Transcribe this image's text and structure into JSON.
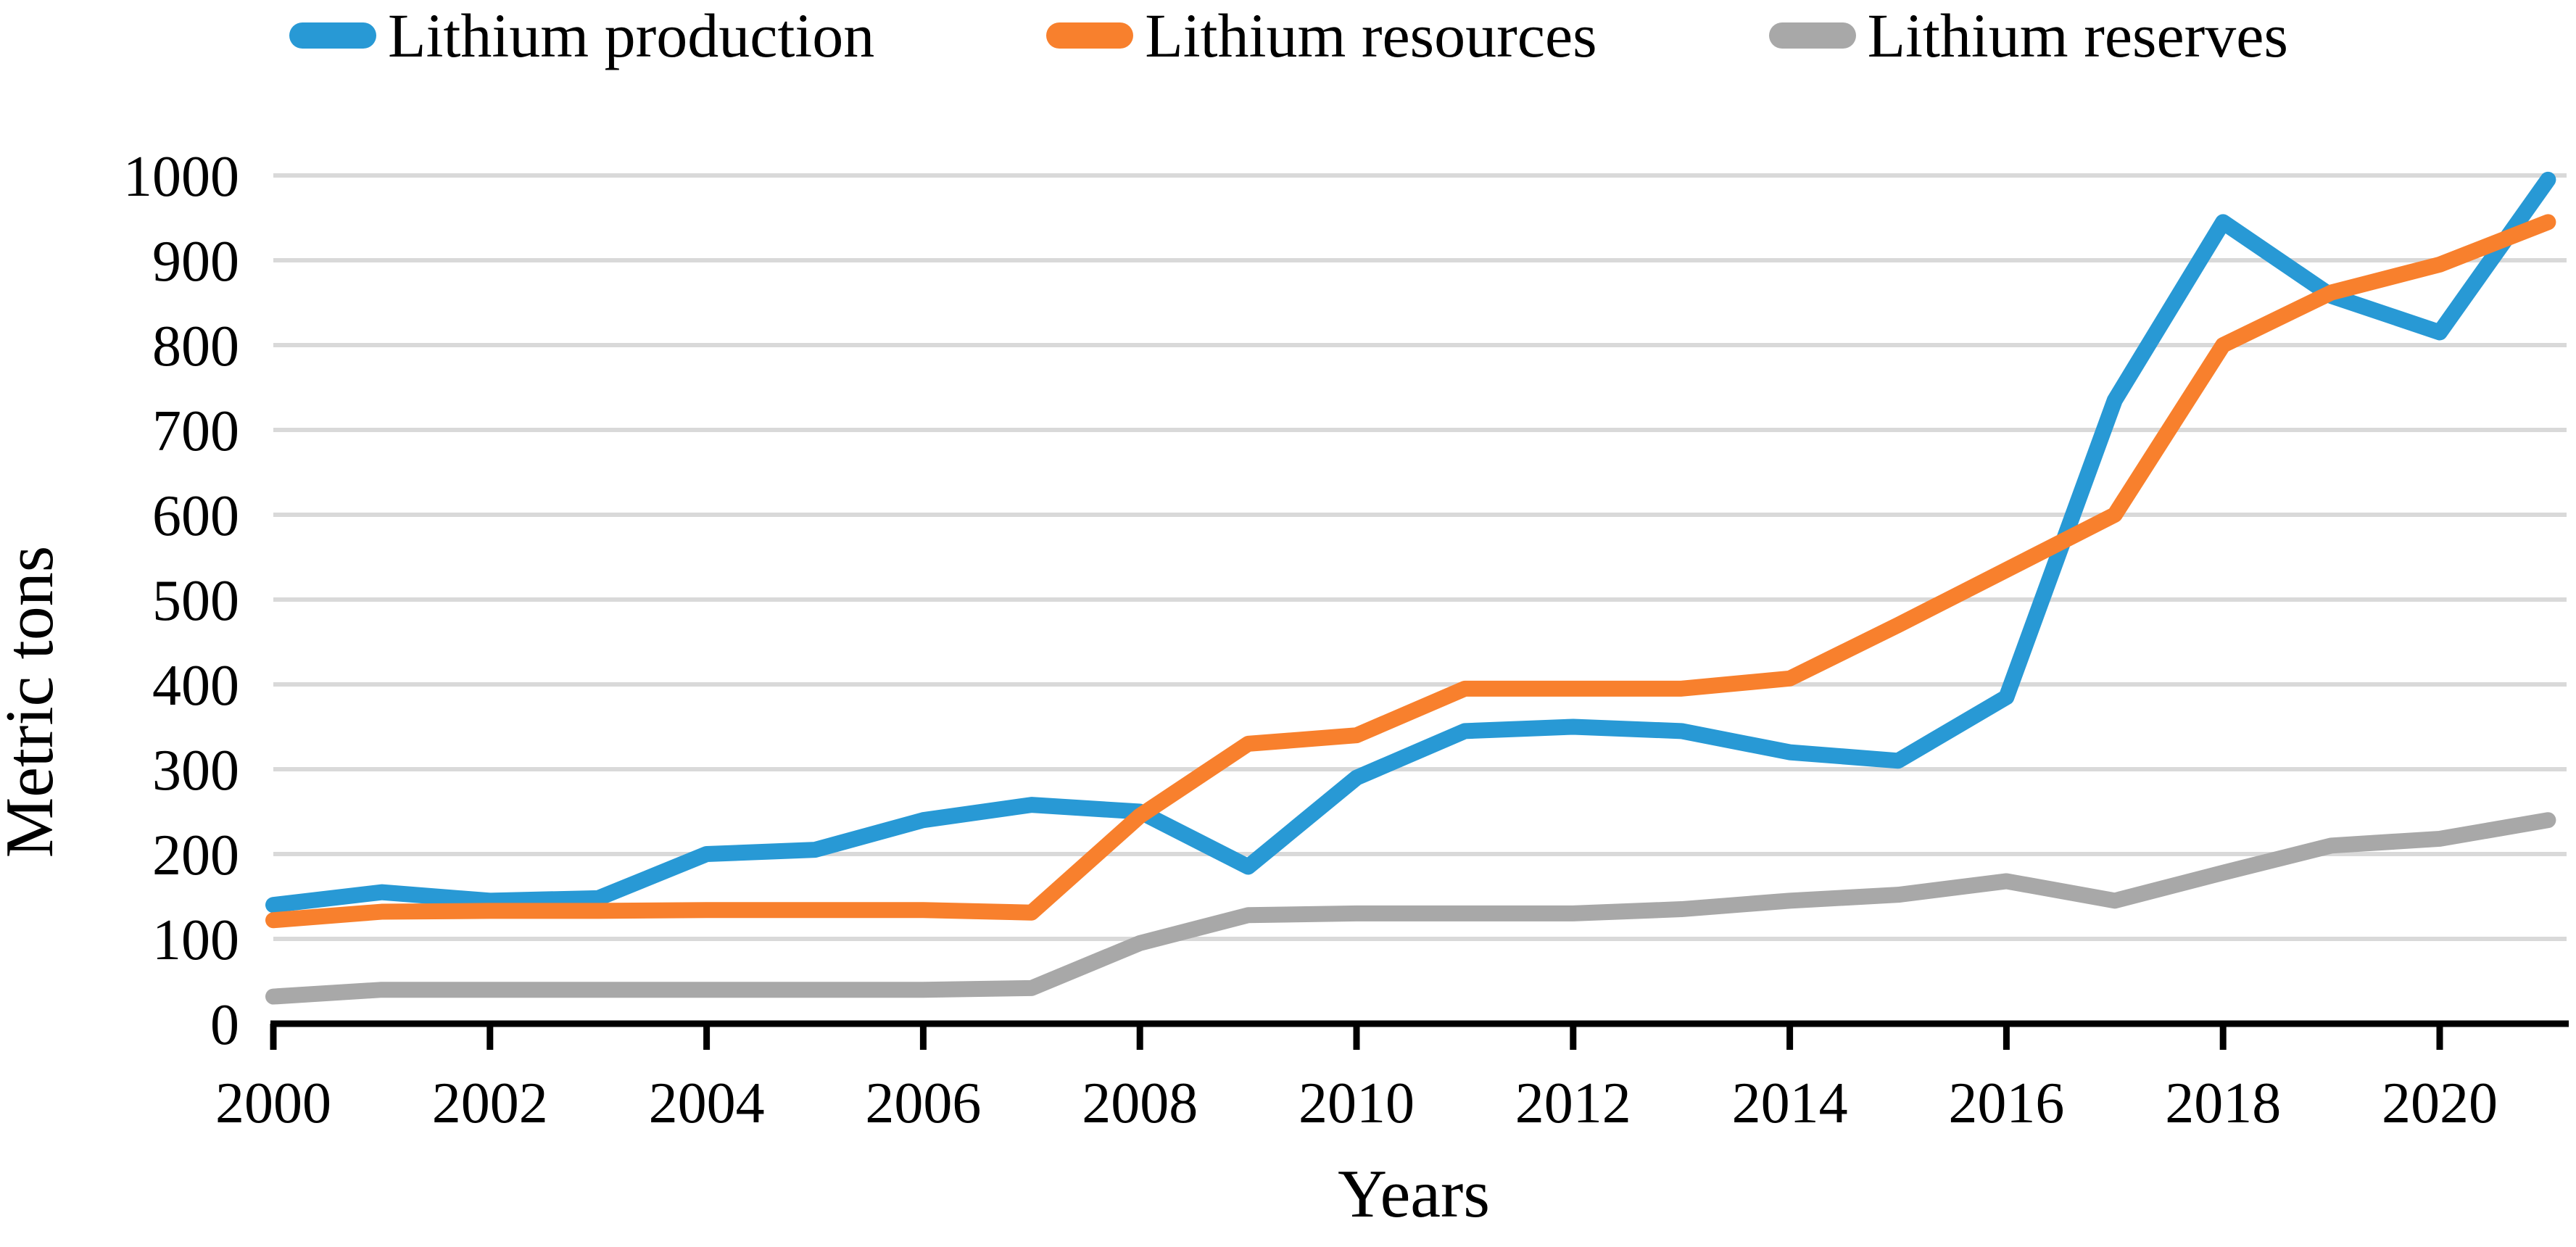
{
  "chart_data": {
    "type": "line",
    "title": "",
    "xlabel": "Years",
    "ylabel": "Metric tons",
    "x": [
      2000,
      2001,
      2002,
      2003,
      2004,
      2005,
      2006,
      2007,
      2008,
      2009,
      2010,
      2011,
      2012,
      2013,
      2014,
      2015,
      2016,
      2017,
      2018,
      2019,
      2020,
      2021
    ],
    "xtick_labels": [
      "2000",
      "2002",
      "2004",
      "2006",
      "2008",
      "2010",
      "2012",
      "2014",
      "2016",
      "2018",
      "2020"
    ],
    "xtick_years": [
      2000,
      2002,
      2004,
      2006,
      2008,
      2010,
      2012,
      2014,
      2016,
      2018,
      2020
    ],
    "ytick_labels": [
      "0",
      "100",
      "200",
      "300",
      "400",
      "500",
      "600",
      "700",
      "800",
      "900",
      "1000"
    ],
    "ylim": [
      0,
      1000
    ],
    "ytick_step": 100,
    "grid": "horizontal",
    "legend_position": "top",
    "series": [
      {
        "name": "Lithium production",
        "color": "#2899D5",
        "values": [
          140,
          155,
          145,
          148,
          200,
          205,
          240,
          258,
          250,
          185,
          290,
          345,
          350,
          345,
          320,
          310,
          385,
          735,
          945,
          858,
          815,
          995
        ]
      },
      {
        "name": "Lithium resources",
        "color": "#F8802D",
        "values": [
          122,
          132,
          133,
          133,
          134,
          134,
          134,
          131,
          245,
          330,
          340,
          395,
          395,
          395,
          407,
          470,
          535,
          600,
          800,
          862,
          895,
          945
        ]
      },
      {
        "name": "Lithium reserves",
        "color": "#A8A8A8",
        "values": [
          32,
          40,
          40,
          40,
          40,
          40,
          40,
          42,
          95,
          128,
          130,
          130,
          130,
          135,
          145,
          152,
          168,
          145,
          178,
          210,
          218,
          240
        ]
      }
    ],
    "style": {
      "gridline_color": "#D9D9D9",
      "axis_color": "#000000",
      "text_color": "#000000",
      "background": "#FFFFFF"
    }
  }
}
